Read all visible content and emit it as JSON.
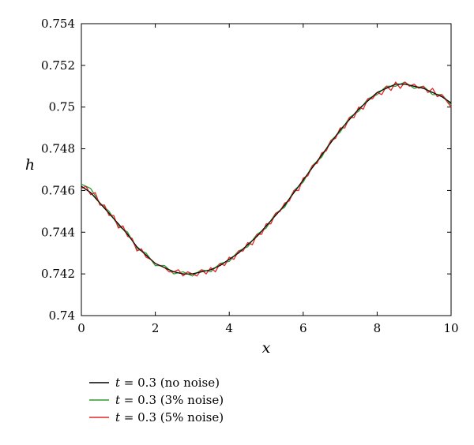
{
  "chart_data": {
    "type": "line",
    "xlabel": "x",
    "ylabel": "h",
    "xlim": [
      0,
      10
    ],
    "ylim": [
      0.74,
      0.754
    ],
    "xticks": [
      0,
      2,
      4,
      6,
      8,
      10
    ],
    "xtick_labels": [
      "0",
      "2",
      "4",
      "6",
      "8",
      "10"
    ],
    "yticks": [
      0.74,
      0.742,
      0.744,
      0.746,
      0.748,
      0.75,
      0.752,
      0.754
    ],
    "ytick_labels": [
      "0.74",
      "0.742",
      "0.744",
      "0.746",
      "0.748",
      "0.75",
      "0.752",
      "0.754"
    ],
    "grid": false,
    "legend_position": "bottom-left, below plot",
    "series": [
      {
        "label_var": "t",
        "label_rest": " = 0.3 (no noise)",
        "color": "#000000",
        "x": [
          0,
          0.25,
          0.5,
          0.75,
          1.0,
          1.25,
          1.5,
          1.75,
          2.0,
          2.25,
          2.5,
          2.75,
          3.0,
          3.25,
          3.5,
          3.75,
          4.0,
          4.25,
          4.5,
          4.75,
          5.0,
          5.25,
          5.5,
          5.75,
          6.0,
          6.25,
          6.5,
          6.75,
          7.0,
          7.25,
          7.5,
          7.75,
          8.0,
          8.25,
          8.5,
          8.75,
          9.0,
          9.25,
          9.5,
          9.75,
          10.0
        ],
        "y": [
          0.7462,
          0.7459,
          0.7454,
          0.7449,
          0.7444,
          0.7439,
          0.7433,
          0.7429,
          0.7425,
          0.7423,
          0.7421,
          0.742,
          0.742,
          0.7421,
          0.7422,
          0.7424,
          0.7427,
          0.743,
          0.7434,
          0.7438,
          0.7443,
          0.7448,
          0.7453,
          0.7459,
          0.7465,
          0.7471,
          0.7477,
          0.7483,
          0.7489,
          0.7494,
          0.7499,
          0.7503,
          0.7507,
          0.7509,
          0.7511,
          0.7511,
          0.751,
          0.7509,
          0.7507,
          0.7505,
          0.7502
        ]
      },
      {
        "label_var": "t",
        "label_rest": " = 0.3 (3% noise)",
        "color": "#2e9a2e",
        "x": [
          0,
          0.25,
          0.5,
          0.75,
          1.0,
          1.25,
          1.5,
          1.75,
          2.0,
          2.25,
          2.5,
          2.75,
          3.0,
          3.25,
          3.5,
          3.75,
          4.0,
          4.25,
          4.5,
          4.75,
          5.0,
          5.25,
          5.5,
          5.75,
          6.0,
          6.25,
          6.5,
          6.75,
          7.0,
          7.25,
          7.5,
          7.75,
          8.0,
          8.25,
          8.5,
          8.75,
          9.0,
          9.25,
          9.5,
          9.75,
          10.0
        ],
        "y": [
          0.7463,
          0.7461,
          0.7454,
          0.745,
          0.7443,
          0.744,
          0.7432,
          0.743,
          0.7424,
          0.7424,
          0.742,
          0.7421,
          0.7419,
          0.7422,
          0.7421,
          0.7425,
          0.7426,
          0.7431,
          0.7433,
          0.7439,
          0.7442,
          0.7449,
          0.7452,
          0.746,
          0.7464,
          0.7472,
          0.7476,
          0.7484,
          0.7488,
          0.7495,
          0.7498,
          0.7504,
          0.7506,
          0.751,
          0.751,
          0.7512,
          0.7509,
          0.751,
          0.7506,
          0.7506,
          0.7501
        ]
      },
      {
        "label_var": "t",
        "label_rest": " = 0.3 (5% noise)",
        "color": "#e0262a",
        "x": [
          0,
          0.125,
          0.25,
          0.375,
          0.5,
          0.625,
          0.75,
          0.875,
          1.0,
          1.125,
          1.25,
          1.375,
          1.5,
          1.625,
          1.75,
          1.875,
          2.0,
          2.125,
          2.25,
          2.375,
          2.5,
          2.625,
          2.75,
          2.875,
          3.0,
          3.125,
          3.25,
          3.375,
          3.5,
          3.625,
          3.75,
          3.875,
          4.0,
          4.125,
          4.25,
          4.375,
          4.5,
          4.625,
          4.75,
          4.875,
          5.0,
          5.125,
          5.25,
          5.375,
          5.5,
          5.625,
          5.75,
          5.875,
          6.0,
          6.125,
          6.25,
          6.375,
          6.5,
          6.625,
          6.75,
          6.875,
          7.0,
          7.125,
          7.25,
          7.375,
          7.5,
          7.625,
          7.75,
          7.875,
          8.0,
          8.125,
          8.25,
          8.375,
          8.5,
          8.625,
          8.75,
          8.875,
          9.0,
          9.125,
          9.25,
          9.375,
          9.5,
          9.625,
          9.75,
          9.875,
          10.0
        ],
        "y": [
          0.7461,
          0.7462,
          0.7458,
          0.7459,
          0.7453,
          0.7453,
          0.7448,
          0.7448,
          0.7442,
          0.7443,
          0.7438,
          0.7437,
          0.7431,
          0.7432,
          0.7428,
          0.7427,
          0.7425,
          0.7424,
          0.7423,
          0.7421,
          0.7421,
          0.7422,
          0.7419,
          0.7421,
          0.742,
          0.7419,
          0.7422,
          0.742,
          0.7423,
          0.7421,
          0.7425,
          0.7424,
          0.7428,
          0.7427,
          0.7431,
          0.7431,
          0.7435,
          0.7434,
          0.7439,
          0.7439,
          0.7444,
          0.7444,
          0.7449,
          0.745,
          0.7454,
          0.7455,
          0.746,
          0.746,
          0.7466,
          0.7467,
          0.7472,
          0.7473,
          0.7478,
          0.7479,
          0.7484,
          0.7485,
          0.749,
          0.749,
          0.7495,
          0.7495,
          0.75,
          0.7499,
          0.7504,
          0.7504,
          0.7507,
          0.7506,
          0.751,
          0.7508,
          0.7512,
          0.7509,
          0.7512,
          0.751,
          0.7511,
          0.7509,
          0.751,
          0.7507,
          0.7509,
          0.7505,
          0.7506,
          0.7503,
          0.75
        ]
      }
    ]
  }
}
